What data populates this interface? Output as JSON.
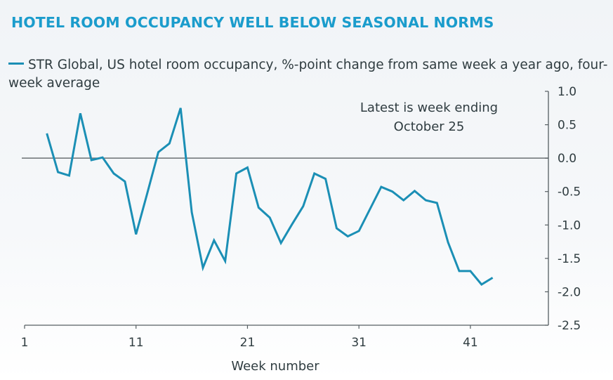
{
  "chart_data": {
    "type": "line",
    "title": "HOTEL ROOM OCCUPANCY WELL BELOW SEASONAL NORMS",
    "xlabel": "Week number",
    "ylabel": "",
    "xlim": [
      1,
      48
    ],
    "ylim": [
      -2.5,
      1.0
    ],
    "xticks": [
      1,
      11,
      21,
      31,
      41
    ],
    "yticks": [
      1.0,
      0.5,
      0.0,
      -0.5,
      -1.0,
      -1.5,
      -2.0,
      -2.5
    ],
    "ytick_labels": [
      "1.0",
      "0.5",
      "0.0",
      "-0.5",
      "-1.0",
      "-1.5",
      "-2.0",
      "-2.5"
    ],
    "y_axis_side": "right",
    "grid": false,
    "reference_line": 0.0,
    "legend_placement": "top-left",
    "annotation": [
      "Latest is week ending",
      "October 25"
    ],
    "series": [
      {
        "name": "STR Global, US hotel room occupancy, %-point change from same week a year ago, four-week average",
        "color": "#1b8fb5",
        "x": [
          3,
          4,
          5,
          6,
          7,
          8,
          9,
          10,
          11,
          12,
          13,
          14,
          15,
          16,
          17,
          18,
          19,
          20,
          21,
          22,
          23,
          24,
          25,
          26,
          27,
          28,
          29,
          30,
          31,
          32,
          33,
          34,
          35,
          36,
          37,
          38,
          39,
          40,
          41,
          42,
          43
        ],
        "values": [
          0.37,
          -0.21,
          -0.26,
          0.67,
          -0.03,
          0.01,
          -0.23,
          -0.35,
          -1.14,
          -0.53,
          0.09,
          0.22,
          0.75,
          -0.81,
          -1.64,
          -1.23,
          -1.54,
          -0.23,
          -0.14,
          -0.74,
          -0.89,
          -1.27,
          -0.99,
          -0.72,
          -0.23,
          -0.31,
          -1.05,
          -1.17,
          -1.09,
          -0.76,
          -0.43,
          -0.5,
          -0.63,
          -0.49,
          -0.63,
          -0.67,
          -1.26,
          -1.69,
          -1.69,
          -1.89,
          -1.79
        ]
      }
    ]
  },
  "colors": {
    "title": "#1b9ccc",
    "series": "#1b8fb5",
    "text": "#2f3c40",
    "axis": "#555e62"
  }
}
